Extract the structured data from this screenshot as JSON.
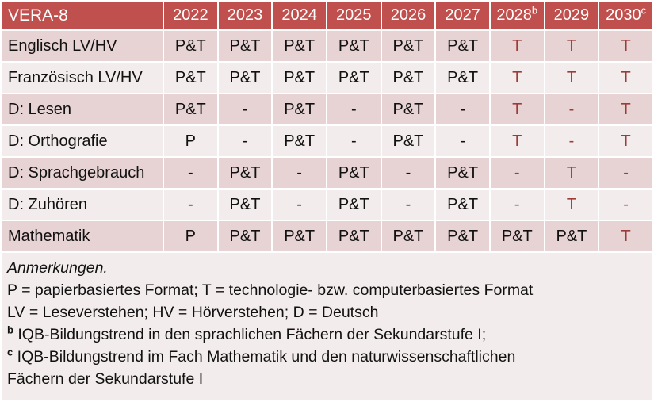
{
  "colors": {
    "header_bg": "#C0504D",
    "header_text": "#FFFFFF",
    "row_dark_bg": "#E7D3D3",
    "row_light_bg": "#F3ECEC",
    "accent_text": "#9E3B38",
    "body_text": "#111111"
  },
  "table": {
    "title": "VERA-8",
    "columns": [
      {
        "label": "2022",
        "sup": ""
      },
      {
        "label": "2023",
        "sup": ""
      },
      {
        "label": "2024",
        "sup": ""
      },
      {
        "label": "2025",
        "sup": ""
      },
      {
        "label": "2026",
        "sup": ""
      },
      {
        "label": "2027",
        "sup": ""
      },
      {
        "label": "2028",
        "sup": "b"
      },
      {
        "label": "2029",
        "sup": ""
      },
      {
        "label": "2030",
        "sup": "c"
      }
    ],
    "rows": [
      {
        "label": "Englisch LV/HV",
        "cells": [
          {
            "t": "P&T",
            "red": false
          },
          {
            "t": "P&T",
            "red": false
          },
          {
            "t": "P&T",
            "red": false
          },
          {
            "t": "P&T",
            "red": false
          },
          {
            "t": "P&T",
            "red": false
          },
          {
            "t": "P&T",
            "red": false
          },
          {
            "t": "T",
            "red": true
          },
          {
            "t": "T",
            "red": true
          },
          {
            "t": "T",
            "red": true
          }
        ]
      },
      {
        "label": "Französisch LV/HV",
        "cells": [
          {
            "t": "P&T",
            "red": false
          },
          {
            "t": "P&T",
            "red": false
          },
          {
            "t": "P&T",
            "red": false
          },
          {
            "t": "P&T",
            "red": false
          },
          {
            "t": "P&T",
            "red": false
          },
          {
            "t": "P&T",
            "red": false
          },
          {
            "t": "T",
            "red": true
          },
          {
            "t": "T",
            "red": true
          },
          {
            "t": "T",
            "red": true
          }
        ]
      },
      {
        "label": "D: Lesen",
        "cells": [
          {
            "t": "P&T",
            "red": false
          },
          {
            "t": "-",
            "red": false
          },
          {
            "t": "P&T",
            "red": false
          },
          {
            "t": "-",
            "red": false
          },
          {
            "t": "P&T",
            "red": false
          },
          {
            "t": "-",
            "red": false
          },
          {
            "t": "T",
            "red": true
          },
          {
            "t": "-",
            "red": true
          },
          {
            "t": "T",
            "red": true
          }
        ]
      },
      {
        "label": "D: Orthografie",
        "cells": [
          {
            "t": "P",
            "red": false
          },
          {
            "t": "-",
            "red": false
          },
          {
            "t": "P&T",
            "red": false
          },
          {
            "t": "-",
            "red": false
          },
          {
            "t": "P&T",
            "red": false
          },
          {
            "t": "-",
            "red": false
          },
          {
            "t": "T",
            "red": true
          },
          {
            "t": "-",
            "red": true
          },
          {
            "t": "T",
            "red": true
          }
        ]
      },
      {
        "label": "D: Sprachgebrauch",
        "cells": [
          {
            "t": "-",
            "red": false
          },
          {
            "t": "P&T",
            "red": false
          },
          {
            "t": "-",
            "red": false
          },
          {
            "t": "P&T",
            "red": false
          },
          {
            "t": "-",
            "red": false
          },
          {
            "t": "P&T",
            "red": false
          },
          {
            "t": "-",
            "red": true
          },
          {
            "t": "T",
            "red": true
          },
          {
            "t": "-",
            "red": true
          }
        ]
      },
      {
        "label": "D: Zuhören",
        "cells": [
          {
            "t": "-",
            "red": false
          },
          {
            "t": "P&T",
            "red": false
          },
          {
            "t": "-",
            "red": false
          },
          {
            "t": "P&T",
            "red": false
          },
          {
            "t": "-",
            "red": false
          },
          {
            "t": "P&T",
            "red": false
          },
          {
            "t": "-",
            "red": true
          },
          {
            "t": "T",
            "red": true
          },
          {
            "t": "-",
            "red": true
          }
        ]
      },
      {
        "label": "Mathematik",
        "cells": [
          {
            "t": "P",
            "red": false
          },
          {
            "t": "P&T",
            "red": false
          },
          {
            "t": "P&T",
            "red": false
          },
          {
            "t": "P&T",
            "red": false
          },
          {
            "t": "P&T",
            "red": false
          },
          {
            "t": "P&T",
            "red": false
          },
          {
            "t": "P&T",
            "red": false
          },
          {
            "t": "P&T",
            "red": false
          },
          {
            "t": "T",
            "red": true
          }
        ]
      }
    ]
  },
  "notes": {
    "heading": "Anmerkungen.",
    "lines": [
      {
        "sup": "",
        "text": "P = papierbasiertes Format; T = technologie- bzw. computerbasiertes Format"
      },
      {
        "sup": "",
        "text": "LV = Leseverstehen; HV = Hörverstehen; D = Deutsch"
      },
      {
        "sup": "b",
        "text": "IQB-Bildungstrend in den sprachlichen Fächern der Sekundarstufe I;"
      },
      {
        "sup": "c",
        "text": "IQB-Bildungstrend im Fach Mathematik und den naturwissenschaftlichen"
      },
      {
        "sup": "",
        "text": "Fächern der Sekundarstufe I"
      }
    ]
  }
}
